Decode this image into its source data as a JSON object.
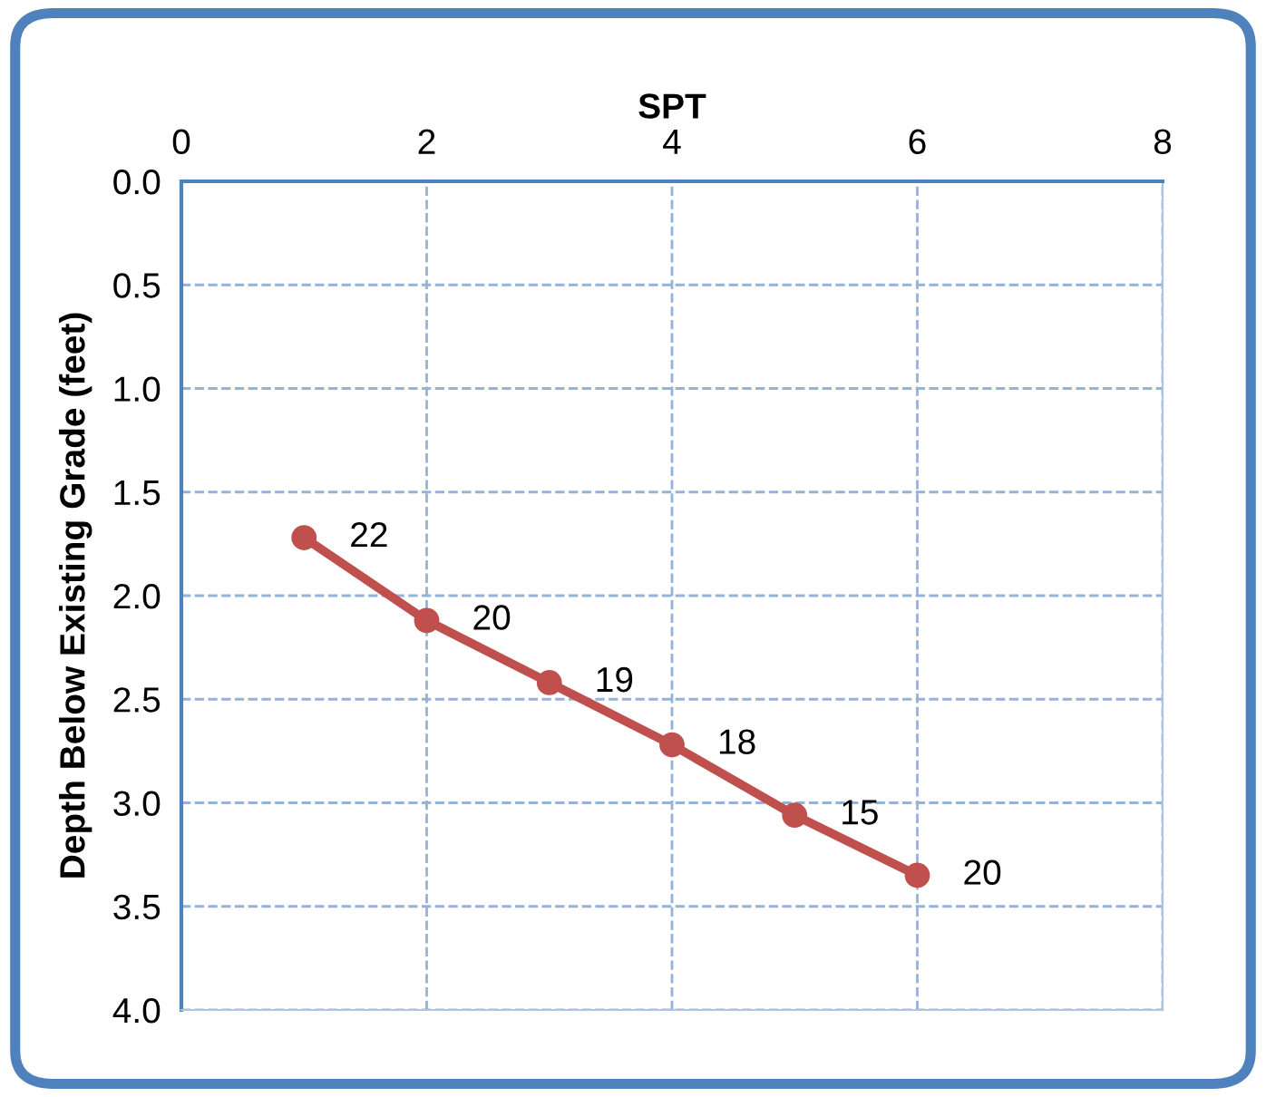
{
  "chart_data": {
    "type": "line",
    "xlabel": "SPT",
    "ylabel": "Depth Below Existing Grade (feet)",
    "x": [
      1,
      2,
      3,
      4,
      5,
      6
    ],
    "series": [
      {
        "color": "#c0504d",
        "values": [
          1.72,
          2.12,
          2.42,
          2.72,
          3.06,
          3.35
        ]
      }
    ],
    "xlim": [
      0,
      8
    ],
    "xticks": [
      0,
      2,
      4,
      6,
      8
    ],
    "ylim": [
      4.0,
      0.0
    ],
    "yticks": [
      {
        "value": 0,
        "label": "0.0"
      },
      {
        "value": 0.5,
        "label": "0.5"
      },
      {
        "value": 1,
        "label": "1.0"
      },
      {
        "value": 1.5,
        "label": "1.5"
      },
      {
        "value": 2,
        "label": "2.0"
      },
      {
        "value": 2.5,
        "label": "2.5"
      },
      {
        "value": 3,
        "label": "3.0"
      },
      {
        "value": 3.5,
        "label": "3.5"
      },
      {
        "value": 4,
        "label": "4.0"
      }
    ],
    "grid": true,
    "marker": "circle",
    "line_style": "solid",
    "legend": false,
    "annotations": [
      {
        "text": "22",
        "x": 1,
        "y": 1.72
      },
      {
        "text": "20",
        "x": 2,
        "y": 2.12
      },
      {
        "text": "19",
        "x": 3,
        "y": 2.42
      },
      {
        "text": "18",
        "x": 4,
        "y": 2.72
      },
      {
        "text": "15",
        "x": 5,
        "y": 3.06
      },
      {
        "text": "20",
        "x": 6,
        "y": 3.35
      }
    ]
  }
}
